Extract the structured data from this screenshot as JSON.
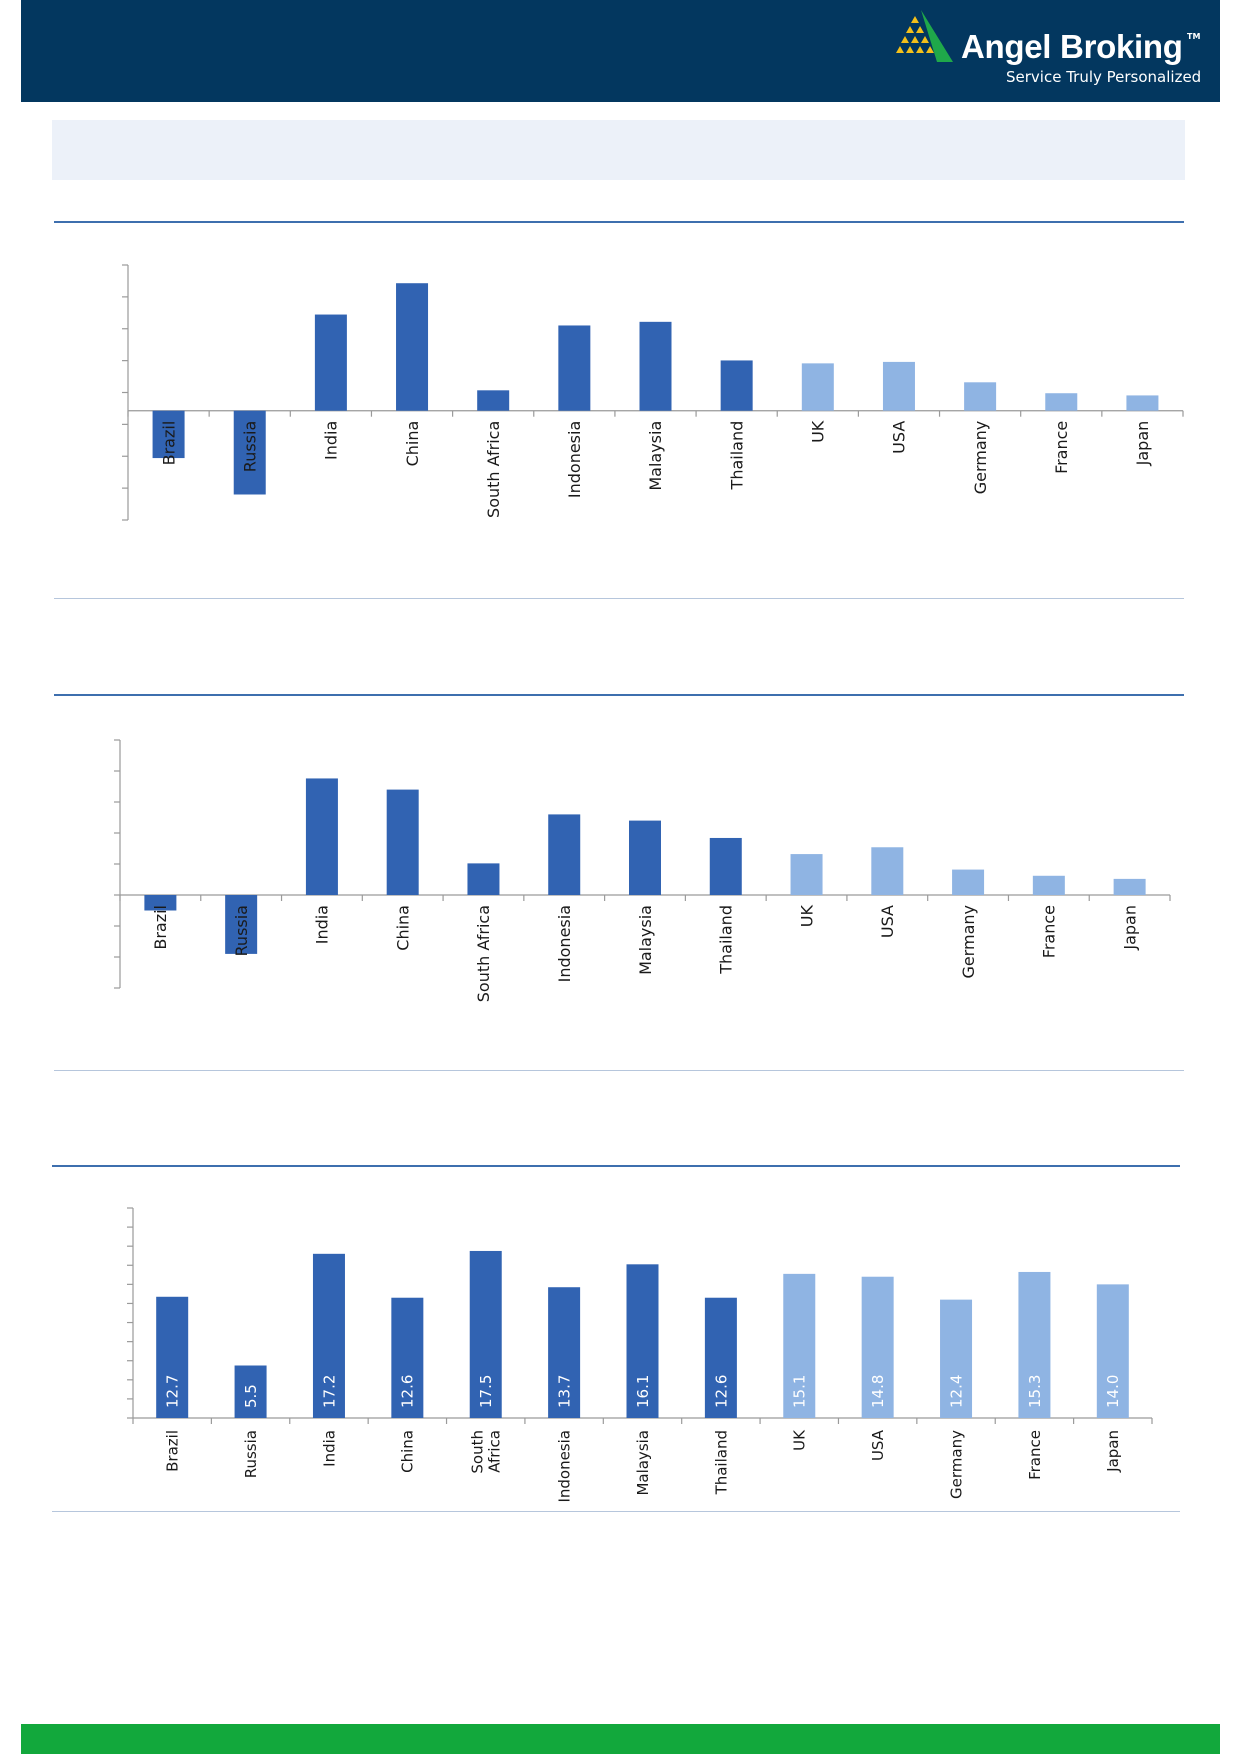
{
  "brand": {
    "name": "Angel Broking",
    "trademark": "TM",
    "tagline": "Service Truly Personalized"
  },
  "colors": {
    "header_bg": "#03375f",
    "title_band_bg": "#ecf1f9",
    "emerging_bar": "#3163b2",
    "developed_bar": "#8fb4e3",
    "footer_bar": "#12a83c",
    "logo_green": "#1fa84a",
    "logo_gold": "#f4c01a"
  },
  "chart_data": [
    {
      "type": "bar",
      "categories": [
        "Brazil",
        "Russia",
        "India",
        "China",
        "South Africa",
        "Indonesia",
        "Malaysia",
        "Thailand",
        "UK",
        "USA",
        "Germany",
        "France",
        "Japan"
      ],
      "values": [
        -6.5,
        -11.5,
        13.2,
        17.5,
        2.8,
        11.7,
        12.2,
        6.9,
        6.5,
        6.7,
        3.9,
        2.4,
        2.1
      ],
      "category_group": [
        "emerging",
        "emerging",
        "emerging",
        "emerging",
        "emerging",
        "emerging",
        "emerging",
        "emerging",
        "developed",
        "developed",
        "developed",
        "developed",
        "developed"
      ],
      "ylim": [
        -15,
        20
      ],
      "title": "",
      "xlabel": "",
      "ylabel": "",
      "grid": false,
      "legend": "none"
    },
    {
      "type": "bar",
      "categories": [
        "Brazil",
        "Russia",
        "India",
        "China",
        "South Africa",
        "Indonesia",
        "Malaysia",
        "Thailand",
        "UK",
        "USA",
        "Germany",
        "France",
        "Japan"
      ],
      "values": [
        -2.5,
        -9.5,
        18.8,
        17.0,
        5.1,
        13.0,
        12.0,
        9.2,
        6.6,
        7.7,
        4.1,
        3.1,
        2.6
      ],
      "category_group": [
        "emerging",
        "emerging",
        "emerging",
        "emerging",
        "emerging",
        "emerging",
        "emerging",
        "emerging",
        "developed",
        "developed",
        "developed",
        "developed",
        "developed"
      ],
      "ylim": [
        -15,
        25
      ],
      "title": "",
      "xlabel": "",
      "ylabel": "",
      "grid": false,
      "legend": "none"
    },
    {
      "type": "bar",
      "categories": [
        "Brazil",
        "Russia",
        "India",
        "China",
        "South Africa",
        "Indonesia",
        "Malaysia",
        "Thailand",
        "UK",
        "USA",
        "Germany",
        "France",
        "Japan"
      ],
      "category_lines": [
        [
          "Brazil"
        ],
        [
          "Russia"
        ],
        [
          "India"
        ],
        [
          "China"
        ],
        [
          "South",
          "Africa"
        ],
        [
          "Indonesia"
        ],
        [
          "Malaysia"
        ],
        [
          "Thailand"
        ],
        [
          "UK"
        ],
        [
          "USA"
        ],
        [
          "Germany"
        ],
        [
          "France"
        ],
        [
          "Japan"
        ]
      ],
      "values": [
        12.7,
        5.5,
        17.2,
        12.6,
        17.5,
        13.7,
        16.1,
        12.6,
        15.1,
        14.8,
        12.4,
        15.3,
        14.0
      ],
      "value_labels": [
        "12.7",
        "5.5",
        "17.2",
        "12.6",
        "17.5",
        "13.7",
        "16.1",
        "12.6",
        "15.1",
        "14.8",
        "12.4",
        "15.3",
        "14.0"
      ],
      "category_group": [
        "emerging",
        "emerging",
        "emerging",
        "emerging",
        "emerging",
        "emerging",
        "emerging",
        "emerging",
        "developed",
        "developed",
        "developed",
        "developed",
        "developed"
      ],
      "ylim": [
        0,
        22
      ],
      "title": "",
      "xlabel": "",
      "ylabel": "",
      "grid": false,
      "legend": "none"
    }
  ]
}
